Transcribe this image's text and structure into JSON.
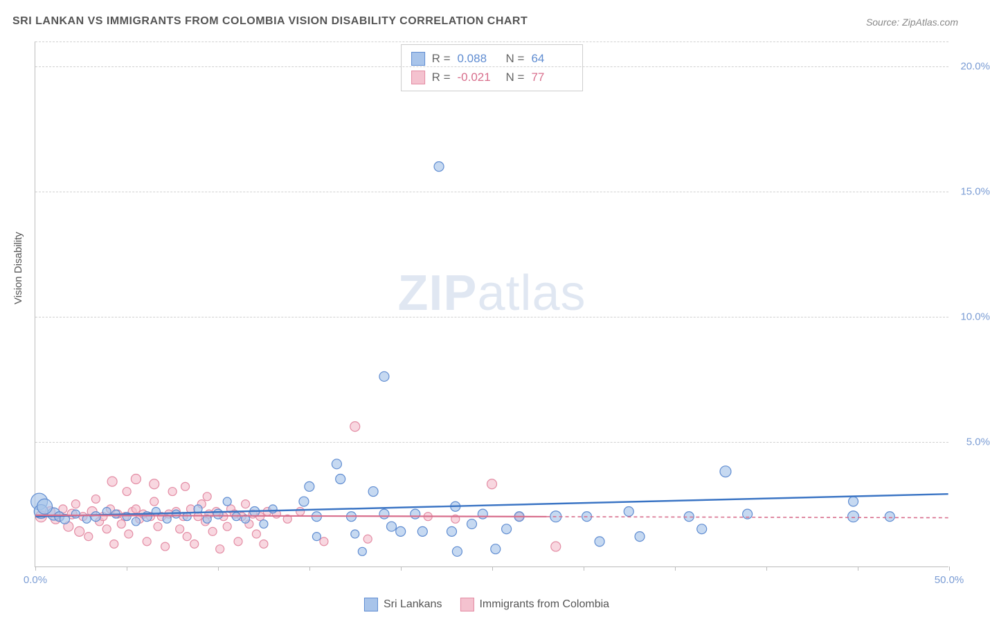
{
  "title": "SRI LANKAN VS IMMIGRANTS FROM COLOMBIA VISION DISABILITY CORRELATION CHART",
  "source": "Source: ZipAtlas.com",
  "watermark": {
    "zip": "ZIP",
    "atlas": "atlas"
  },
  "y_axis_label": "Vision Disability",
  "chart": {
    "type": "scatter",
    "xlim": [
      0,
      50
    ],
    "ylim": [
      0,
      21
    ],
    "x_ticks": [
      0,
      5,
      10,
      15,
      20,
      25,
      30,
      35,
      40,
      45,
      50
    ],
    "x_tick_labels": {
      "0": "0.0%",
      "50": "50.0%"
    },
    "y_ticks": [
      5,
      10,
      15,
      20
    ],
    "y_tick_labels": {
      "5": "5.0%",
      "10": "10.0%",
      "15": "15.0%",
      "20": "20.0%"
    },
    "grid_color": "#d0d0d0",
    "background_color": "#ffffff",
    "axis_color": "#bbbbbb",
    "tick_label_color": "#7a9cd4",
    "series": [
      {
        "name": "Sri Lankans",
        "marker_color": "#a8c4ea",
        "marker_stroke": "#5f8cd1",
        "line_color": "#3a74c4",
        "line_dash": "none",
        "marker_radius_range": [
          5,
          13
        ],
        "R": "0.088",
        "N": "64",
        "stats_color": "#5f8cd1",
        "trend": {
          "x1": 0,
          "y1": 2.0,
          "x2": 50,
          "y2": 2.9
        },
        "points": [
          {
            "x": 0.2,
            "y": 2.6,
            "r": 12
          },
          {
            "x": 0.3,
            "y": 2.2,
            "r": 10
          },
          {
            "x": 1.0,
            "y": 2.1,
            "r": 9
          },
          {
            "x": 1.3,
            "y": 2.0,
            "r": 7
          },
          {
            "x": 1.6,
            "y": 1.9,
            "r": 7
          },
          {
            "x": 0.5,
            "y": 2.4,
            "r": 11
          },
          {
            "x": 2.2,
            "y": 2.1,
            "r": 6
          },
          {
            "x": 2.8,
            "y": 1.9,
            "r": 6
          },
          {
            "x": 3.3,
            "y": 2.0,
            "r": 7
          },
          {
            "x": 3.9,
            "y": 2.2,
            "r": 6
          },
          {
            "x": 4.4,
            "y": 2.1,
            "r": 6
          },
          {
            "x": 5.0,
            "y": 2.0,
            "r": 6
          },
          {
            "x": 5.5,
            "y": 1.8,
            "r": 6
          },
          {
            "x": 6.1,
            "y": 2.0,
            "r": 7
          },
          {
            "x": 6.6,
            "y": 2.2,
            "r": 6
          },
          {
            "x": 7.2,
            "y": 1.9,
            "r": 6
          },
          {
            "x": 7.7,
            "y": 2.1,
            "r": 6
          },
          {
            "x": 8.3,
            "y": 2.0,
            "r": 6
          },
          {
            "x": 8.9,
            "y": 2.3,
            "r": 6
          },
          {
            "x": 9.4,
            "y": 1.9,
            "r": 6
          },
          {
            "x": 10.0,
            "y": 2.1,
            "r": 7
          },
          {
            "x": 10.5,
            "y": 2.6,
            "r": 6
          },
          {
            "x": 11.0,
            "y": 2.0,
            "r": 6
          },
          {
            "x": 11.5,
            "y": 1.9,
            "r": 6
          },
          {
            "x": 12.0,
            "y": 2.2,
            "r": 7
          },
          {
            "x": 12.5,
            "y": 1.7,
            "r": 6
          },
          {
            "x": 13.0,
            "y": 2.3,
            "r": 6
          },
          {
            "x": 14.7,
            "y": 2.6,
            "r": 7
          },
          {
            "x": 15.0,
            "y": 3.2,
            "r": 7
          },
          {
            "x": 15.4,
            "y": 2.0,
            "r": 7
          },
          {
            "x": 15.4,
            "y": 1.2,
            "r": 6
          },
          {
            "x": 16.5,
            "y": 4.1,
            "r": 7
          },
          {
            "x": 16.7,
            "y": 3.5,
            "r": 7
          },
          {
            "x": 17.3,
            "y": 2.0,
            "r": 7
          },
          {
            "x": 17.5,
            "y": 1.3,
            "r": 6
          },
          {
            "x": 17.9,
            "y": 0.6,
            "r": 6
          },
          {
            "x": 18.5,
            "y": 3.0,
            "r": 7
          },
          {
            "x": 19.1,
            "y": 7.6,
            "r": 7
          },
          {
            "x": 19.1,
            "y": 2.1,
            "r": 7
          },
          {
            "x": 19.5,
            "y": 1.6,
            "r": 7
          },
          {
            "x": 20.0,
            "y": 1.4,
            "r": 7
          },
          {
            "x": 20.8,
            "y": 2.1,
            "r": 7
          },
          {
            "x": 21.2,
            "y": 1.4,
            "r": 7
          },
          {
            "x": 22.1,
            "y": 16.0,
            "r": 7
          },
          {
            "x": 22.8,
            "y": 1.4,
            "r": 7
          },
          {
            "x": 23.0,
            "y": 2.4,
            "r": 7
          },
          {
            "x": 23.1,
            "y": 0.6,
            "r": 7
          },
          {
            "x": 23.9,
            "y": 1.7,
            "r": 7
          },
          {
            "x": 24.5,
            "y": 2.1,
            "r": 7
          },
          {
            "x": 25.2,
            "y": 0.7,
            "r": 7
          },
          {
            "x": 25.8,
            "y": 1.5,
            "r": 7
          },
          {
            "x": 26.5,
            "y": 2.0,
            "r": 7
          },
          {
            "x": 28.5,
            "y": 2.0,
            "r": 8
          },
          {
            "x": 30.2,
            "y": 2.0,
            "r": 7
          },
          {
            "x": 30.9,
            "y": 1.0,
            "r": 7
          },
          {
            "x": 32.5,
            "y": 2.2,
            "r": 7
          },
          {
            "x": 33.1,
            "y": 1.2,
            "r": 7
          },
          {
            "x": 35.8,
            "y": 2.0,
            "r": 7
          },
          {
            "x": 36.5,
            "y": 1.5,
            "r": 7
          },
          {
            "x": 37.8,
            "y": 3.8,
            "r": 8
          },
          {
            "x": 39.0,
            "y": 2.1,
            "r": 7
          },
          {
            "x": 44.8,
            "y": 2.0,
            "r": 8
          },
          {
            "x": 44.8,
            "y": 2.6,
            "r": 7
          },
          {
            "x": 46.8,
            "y": 2.0,
            "r": 7
          }
        ]
      },
      {
        "name": "Immigrants from Colombia",
        "marker_color": "#f4c2cf",
        "marker_stroke": "#e38ba3",
        "line_color": "#d86e8c",
        "line_dash": "5,4",
        "marker_radius_range": [
          5,
          10
        ],
        "R": "-0.021",
        "N": "77",
        "stats_color": "#d86e8c",
        "trend": {
          "x1": 0,
          "y1": 2.05,
          "x2": 50,
          "y2": 1.95
        },
        "trend_solid_until": 28,
        "points": [
          {
            "x": 0.3,
            "y": 2.0,
            "r": 8
          },
          {
            "x": 0.8,
            "y": 2.2,
            "r": 7
          },
          {
            "x": 1.1,
            "y": 1.9,
            "r": 7
          },
          {
            "x": 1.3,
            "y": 2.0,
            "r": 6
          },
          {
            "x": 1.5,
            "y": 2.3,
            "r": 6
          },
          {
            "x": 1.8,
            "y": 1.6,
            "r": 7
          },
          {
            "x": 2.0,
            "y": 2.1,
            "r": 7
          },
          {
            "x": 2.2,
            "y": 2.5,
            "r": 6
          },
          {
            "x": 2.4,
            "y": 1.4,
            "r": 7
          },
          {
            "x": 2.6,
            "y": 2.0,
            "r": 6
          },
          {
            "x": 2.9,
            "y": 1.2,
            "r": 6
          },
          {
            "x": 3.1,
            "y": 2.2,
            "r": 7
          },
          {
            "x": 3.3,
            "y": 2.7,
            "r": 6
          },
          {
            "x": 3.5,
            "y": 1.8,
            "r": 6
          },
          {
            "x": 3.7,
            "y": 2.0,
            "r": 6
          },
          {
            "x": 3.9,
            "y": 1.5,
            "r": 6
          },
          {
            "x": 4.1,
            "y": 2.3,
            "r": 6
          },
          {
            "x": 4.2,
            "y": 3.4,
            "r": 7
          },
          {
            "x": 4.3,
            "y": 0.9,
            "r": 6
          },
          {
            "x": 4.5,
            "y": 2.1,
            "r": 6
          },
          {
            "x": 4.7,
            "y": 1.7,
            "r": 6
          },
          {
            "x": 4.9,
            "y": 2.0,
            "r": 6
          },
          {
            "x": 5.0,
            "y": 3.0,
            "r": 6
          },
          {
            "x": 5.1,
            "y": 1.3,
            "r": 6
          },
          {
            "x": 5.3,
            "y": 2.2,
            "r": 6
          },
          {
            "x": 5.5,
            "y": 2.3,
            "r": 6
          },
          {
            "x": 5.5,
            "y": 3.5,
            "r": 7
          },
          {
            "x": 5.7,
            "y": 1.9,
            "r": 6
          },
          {
            "x": 5.9,
            "y": 2.1,
            "r": 6
          },
          {
            "x": 6.1,
            "y": 1.0,
            "r": 6
          },
          {
            "x": 6.3,
            "y": 2.0,
            "r": 6
          },
          {
            "x": 6.5,
            "y": 2.6,
            "r": 6
          },
          {
            "x": 6.5,
            "y": 3.3,
            "r": 7
          },
          {
            "x": 6.7,
            "y": 1.6,
            "r": 6
          },
          {
            "x": 6.9,
            "y": 2.0,
            "r": 6
          },
          {
            "x": 7.1,
            "y": 0.8,
            "r": 6
          },
          {
            "x": 7.3,
            "y": 2.1,
            "r": 6
          },
          {
            "x": 7.5,
            "y": 3.0,
            "r": 6
          },
          {
            "x": 7.7,
            "y": 2.2,
            "r": 6
          },
          {
            "x": 7.9,
            "y": 1.5,
            "r": 6
          },
          {
            "x": 8.1,
            "y": 2.0,
            "r": 6
          },
          {
            "x": 8.2,
            "y": 3.2,
            "r": 6
          },
          {
            "x": 8.3,
            "y": 1.2,
            "r": 6
          },
          {
            "x": 8.5,
            "y": 2.3,
            "r": 6
          },
          {
            "x": 8.7,
            "y": 0.9,
            "r": 6
          },
          {
            "x": 8.9,
            "y": 2.0,
            "r": 6
          },
          {
            "x": 9.1,
            "y": 2.5,
            "r": 6
          },
          {
            "x": 9.3,
            "y": 1.8,
            "r": 6
          },
          {
            "x": 9.4,
            "y": 2.8,
            "r": 6
          },
          {
            "x": 9.5,
            "y": 2.1,
            "r": 6
          },
          {
            "x": 9.7,
            "y": 1.4,
            "r": 6
          },
          {
            "x": 9.9,
            "y": 2.2,
            "r": 6
          },
          {
            "x": 10.1,
            "y": 0.7,
            "r": 6
          },
          {
            "x": 10.3,
            "y": 2.0,
            "r": 6
          },
          {
            "x": 10.5,
            "y": 1.6,
            "r": 6
          },
          {
            "x": 10.7,
            "y": 2.3,
            "r": 6
          },
          {
            "x": 10.9,
            "y": 2.1,
            "r": 6
          },
          {
            "x": 11.1,
            "y": 1.0,
            "r": 6
          },
          {
            "x": 11.3,
            "y": 2.0,
            "r": 6
          },
          {
            "x": 11.5,
            "y": 2.5,
            "r": 6
          },
          {
            "x": 11.7,
            "y": 1.7,
            "r": 6
          },
          {
            "x": 11.9,
            "y": 2.1,
            "r": 6
          },
          {
            "x": 12.1,
            "y": 1.3,
            "r": 6
          },
          {
            "x": 12.3,
            "y": 2.0,
            "r": 6
          },
          {
            "x": 12.5,
            "y": 0.9,
            "r": 6
          },
          {
            "x": 12.7,
            "y": 2.2,
            "r": 6
          },
          {
            "x": 13.2,
            "y": 2.1,
            "r": 6
          },
          {
            "x": 13.8,
            "y": 1.9,
            "r": 6
          },
          {
            "x": 14.5,
            "y": 2.2,
            "r": 6
          },
          {
            "x": 15.8,
            "y": 1.0,
            "r": 6
          },
          {
            "x": 17.5,
            "y": 5.6,
            "r": 7
          },
          {
            "x": 18.2,
            "y": 1.1,
            "r": 6
          },
          {
            "x": 21.5,
            "y": 2.0,
            "r": 6
          },
          {
            "x": 23.0,
            "y": 1.9,
            "r": 6
          },
          {
            "x": 25.0,
            "y": 3.3,
            "r": 7
          },
          {
            "x": 26.5,
            "y": 2.0,
            "r": 6
          },
          {
            "x": 28.5,
            "y": 0.8,
            "r": 7
          }
        ]
      }
    ]
  },
  "stats_legend": {
    "R_label": "R =",
    "N_label": "N ="
  },
  "bottom_legend": {
    "items": [
      {
        "label": "Sri Lankans",
        "swatch_fill": "#a8c4ea",
        "swatch_stroke": "#5f8cd1"
      },
      {
        "label": "Immigrants from Colombia",
        "swatch_fill": "#f4c2cf",
        "swatch_stroke": "#e38ba3"
      }
    ]
  }
}
